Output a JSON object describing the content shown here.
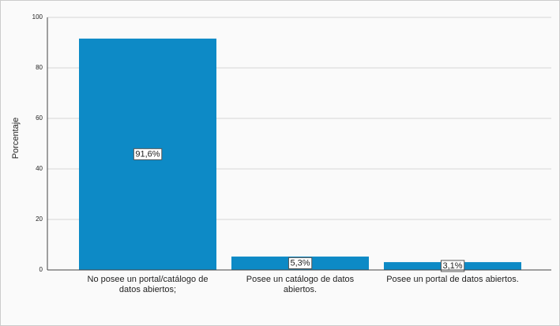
{
  "chart_data": {
    "type": "bar",
    "y_label": "Porcentaje",
    "categories": [
      "No posee un portal/catálogo de datos abiertos;",
      "Posee un catálogo de datos abiertos.",
      "Posee un portal de datos abiertos."
    ],
    "values": [
      91.6,
      5.3,
      3.1
    ],
    "value_labels": [
      "91,6%",
      "5,3%",
      "3,1%"
    ],
    "color": "#0d8ac6",
    "ylim": [
      0,
      100
    ],
    "yticks": [
      0,
      20,
      40,
      60,
      80,
      100
    ],
    "grid": true
  }
}
